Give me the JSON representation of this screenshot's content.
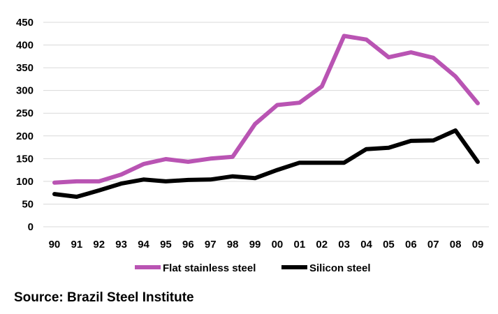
{
  "chart_data": {
    "type": "line",
    "title": "",
    "xlabel": "",
    "ylabel": "",
    "categories": [
      "90",
      "91",
      "92",
      "93",
      "94",
      "95",
      "96",
      "97",
      "98",
      "99",
      "00",
      "01",
      "02",
      "03",
      "04",
      "05",
      "06",
      "07",
      "08",
      "09"
    ],
    "ylim": [
      0,
      450
    ],
    "yticks": [
      0,
      50,
      100,
      150,
      200,
      250,
      300,
      350,
      400,
      450
    ],
    "grid": true,
    "legend_position": "bottom",
    "series": [
      {
        "name": "Flat stainless steel",
        "color": "#b954b3",
        "values": [
          97,
          100,
          100,
          115,
          138,
          149,
          143,
          150,
          154,
          226,
          268,
          273,
          309,
          420,
          412,
          373,
          384,
          372,
          331,
          272
        ]
      },
      {
        "name": "Silicon steel",
        "color": "#000000",
        "values": [
          72,
          66,
          80,
          95,
          104,
          100,
          103,
          104,
          111,
          107,
          125,
          141,
          141,
          141,
          171,
          174,
          189,
          190,
          212,
          143
        ]
      }
    ]
  },
  "source_text": "Source: Brazil Steel Institute"
}
